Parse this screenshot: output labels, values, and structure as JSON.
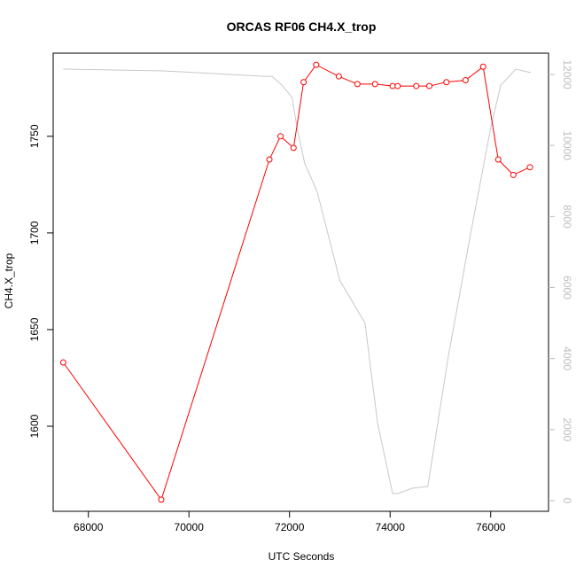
{
  "chart_data": {
    "type": "line",
    "title": "ORCAS RF06 CH4.X_trop",
    "xlabel": "UTC Seconds",
    "ylabel": "CH4.X_trop",
    "y2label": "",
    "xlim": [
      67300,
      77150
    ],
    "ylim": [
      1556,
      1793
    ],
    "y2lim": [
      -300,
      12600
    ],
    "xticks": [
      68000,
      70000,
      72000,
      74000,
      76000
    ],
    "yticks": [
      1600,
      1650,
      1700,
      1750
    ],
    "y2ticks": [
      0,
      2000,
      4000,
      6000,
      8000,
      10000,
      12000
    ],
    "colors": {
      "ch4": "#ff0000",
      "altitude": "#c8c8c8"
    },
    "grid": false,
    "series": [
      {
        "name": "",
        "axis": "left",
        "marker": "open-circle",
        "x": [
          67500,
          69450,
          71600,
          71820,
          72080,
          72280,
          72530,
          72980,
          73350,
          73700,
          74050,
          74150,
          74520,
          74780,
          75120,
          75500,
          75850,
          76150,
          76450,
          76780
        ],
        "y": [
          1633,
          1562,
          1738,
          1750,
          1744,
          1778,
          1787,
          1781,
          1777,
          1777,
          1776,
          1776,
          1776,
          1776,
          1778,
          1779,
          1786,
          1738,
          1730,
          1734
        ]
      },
      {
        "name": "",
        "axis": "right",
        "marker": "none",
        "x": [
          67500,
          69500,
          71500,
          71650,
          71850,
          72050,
          72150,
          72300,
          72550,
          73000,
          73500,
          73750,
          74050,
          74150,
          74450,
          74750,
          75150,
          75600,
          76000,
          76200,
          76500,
          76800
        ],
        "y": [
          12150,
          12100,
          11950,
          11950,
          11700,
          11350,
          10500,
          9500,
          8700,
          6200,
          5000,
          2200,
          200,
          200,
          350,
          400,
          4000,
          7500,
          10500,
          11700,
          12150,
          12050
        ]
      }
    ]
  }
}
